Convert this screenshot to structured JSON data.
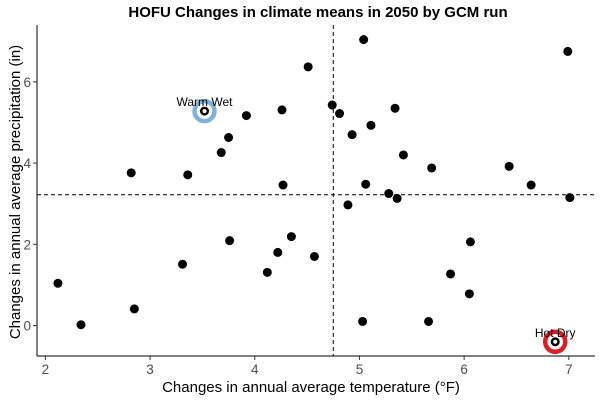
{
  "chart_data": {
    "type": "scatter",
    "title": "HOFU Changes in climate means in 2050 by GCM run",
    "xlabel": "Changes in annual average temperature (°F)",
    "ylabel": "Changes in annual average precipitation (in)",
    "xlim": [
      1.92,
      7.25
    ],
    "ylim": [
      -0.75,
      7.4
    ],
    "xticks": [
      "2",
      "3",
      "4",
      "5",
      "6",
      "7"
    ],
    "yticks": [
      "0",
      "2",
      "4",
      "6"
    ],
    "grid": false,
    "reference_lines": {
      "x_mean": 4.75,
      "y_mean": 3.22
    },
    "points": [
      {
        "x": 2.12,
        "y": 1.04
      },
      {
        "x": 2.34,
        "y": 0.02
      },
      {
        "x": 2.82,
        "y": 3.76
      },
      {
        "x": 2.85,
        "y": 0.41
      },
      {
        "x": 3.31,
        "y": 1.51
      },
      {
        "x": 3.36,
        "y": 3.71
      },
      {
        "x": 3.52,
        "y": 5.28
      },
      {
        "x": 3.68,
        "y": 4.26
      },
      {
        "x": 3.75,
        "y": 4.63
      },
      {
        "x": 3.76,
        "y": 2.09
      },
      {
        "x": 3.92,
        "y": 5.17
      },
      {
        "x": 4.12,
        "y": 1.31
      },
      {
        "x": 4.22,
        "y": 1.8
      },
      {
        "x": 4.26,
        "y": 5.31
      },
      {
        "x": 4.27,
        "y": 3.46
      },
      {
        "x": 4.35,
        "y": 2.19
      },
      {
        "x": 4.51,
        "y": 6.37
      },
      {
        "x": 4.57,
        "y": 1.7
      },
      {
        "x": 4.74,
        "y": 5.43
      },
      {
        "x": 4.81,
        "y": 5.22
      },
      {
        "x": 4.89,
        "y": 2.97
      },
      {
        "x": 4.93,
        "y": 4.7
      },
      {
        "x": 5.03,
        "y": 0.1
      },
      {
        "x": 5.04,
        "y": 7.04
      },
      {
        "x": 5.06,
        "y": 3.48
      },
      {
        "x": 5.11,
        "y": 4.93
      },
      {
        "x": 5.28,
        "y": 3.25
      },
      {
        "x": 5.34,
        "y": 5.35
      },
      {
        "x": 5.36,
        "y": 3.13
      },
      {
        "x": 5.42,
        "y": 4.2
      },
      {
        "x": 5.66,
        "y": 0.1
      },
      {
        "x": 5.69,
        "y": 3.88
      },
      {
        "x": 5.87,
        "y": 1.27
      },
      {
        "x": 6.05,
        "y": 0.78
      },
      {
        "x": 6.06,
        "y": 2.06
      },
      {
        "x": 6.43,
        "y": 3.92
      },
      {
        "x": 6.64,
        "y": 3.46
      },
      {
        "x": 6.87,
        "y": -0.4
      },
      {
        "x": 6.99,
        "y": 6.75
      },
      {
        "x": 7.01,
        "y": 3.15
      }
    ],
    "highlights": [
      {
        "label": "Warm Wet",
        "x": 3.52,
        "y": 5.28,
        "color": "#7fb2d9"
      },
      {
        "label": "Hot Dry",
        "x": 6.87,
        "y": -0.4,
        "color": "#d62027"
      }
    ]
  }
}
